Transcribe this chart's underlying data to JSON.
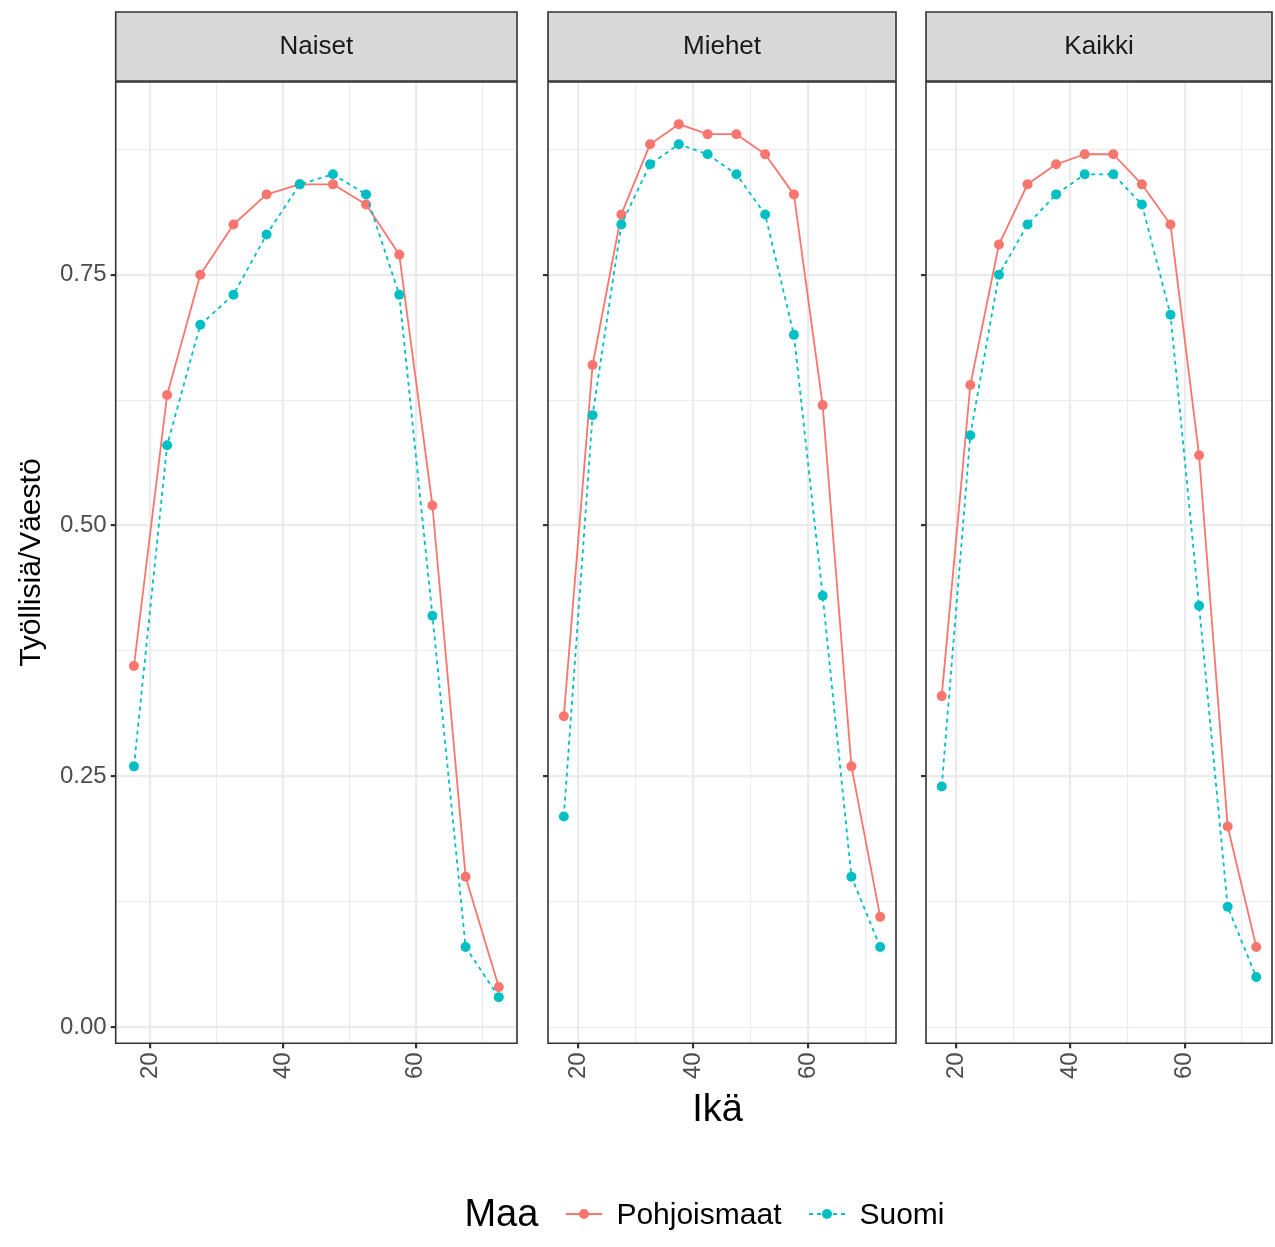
{
  "chart_data": [
    {
      "type": "line",
      "title": "Naiset",
      "ylabel": "Työllisiä/Väestö",
      "x": [
        17.5,
        22.5,
        27.5,
        32.5,
        37.5,
        42.5,
        47.5,
        52.5,
        57.5,
        62.5,
        67.5,
        72.5
      ],
      "xlim": [
        14.75,
        75.25
      ],
      "ylim": [
        -0.016,
        0.942
      ],
      "xticks": [
        {
          "value": 20,
          "label": "20"
        },
        {
          "value": 30,
          "label": null
        },
        {
          "value": 40,
          "label": "40"
        },
        {
          "value": 50,
          "label": null
        },
        {
          "value": 60,
          "label": "60"
        },
        {
          "value": 70,
          "label": null
        }
      ],
      "yticks": [
        {
          "value": 0,
          "label": "0.00"
        },
        {
          "value": 0.125,
          "label": null
        },
        {
          "value": 0.25,
          "label": "0.25"
        },
        {
          "value": 0.375,
          "label": null
        },
        {
          "value": 0.5,
          "label": "0.50"
        },
        {
          "value": 0.625,
          "label": null
        },
        {
          "value": 0.75,
          "label": "0.75"
        },
        {
          "value": 0.875,
          "label": null
        }
      ],
      "grid": true,
      "marker": "circle",
      "series": [
        {
          "color": "#f8766d",
          "line_style": "solid",
          "values": [
            0.36,
            0.63,
            0.75,
            0.8,
            0.83,
            0.84,
            0.84,
            0.82,
            0.77,
            0.52,
            0.15,
            0.04
          ]
        },
        {
          "color": "#00bfc4",
          "line_style": "dashed",
          "values": [
            0.26,
            0.58,
            0.7,
            0.73,
            0.79,
            0.84,
            0.85,
            0.83,
            0.73,
            0.41,
            0.08,
            0.03
          ]
        }
      ]
    },
    {
      "type": "line",
      "title": "Miehet",
      "xlabel": "Ikä",
      "x": [
        17.5,
        22.5,
        27.5,
        32.5,
        37.5,
        42.5,
        47.5,
        52.5,
        57.5,
        62.5,
        67.5,
        72.5
      ],
      "xlim": [
        14.75,
        75.25
      ],
      "ylim": [
        -0.016,
        0.942
      ],
      "xticks": [
        {
          "value": 20,
          "label": "20"
        },
        {
          "value": 30,
          "label": null
        },
        {
          "value": 40,
          "label": "40"
        },
        {
          "value": 50,
          "label": null
        },
        {
          "value": 60,
          "label": "60"
        },
        {
          "value": 70,
          "label": null
        }
      ],
      "yticks": [
        0,
        {
          "value": 0.125,
          "label": null
        },
        0.25,
        {
          "value": 0.375,
          "label": null
        },
        0.5,
        {
          "value": 0.625,
          "label": null
        },
        0.75,
        {
          "value": 0.875,
          "label": null
        }
      ],
      "grid": true,
      "marker": "circle",
      "tick_labels": "x",
      "legend": "bottom",
      "legend_title": "Maa",
      "series": [
        {
          "name": "Pohjoismaat",
          "color": "#f8766d",
          "line_style": "solid",
          "values": [
            0.31,
            0.66,
            0.81,
            0.88,
            0.9,
            0.89,
            0.89,
            0.87,
            0.83,
            0.62,
            0.26,
            0.11
          ]
        },
        {
          "name": "Suomi",
          "color": "#00bfc4",
          "line_style": "dashed",
          "values": [
            0.21,
            0.61,
            0.8,
            0.86,
            0.88,
            0.87,
            0.85,
            0.81,
            0.69,
            0.43,
            0.15,
            0.08
          ]
        }
      ]
    },
    {
      "type": "line",
      "title": "Kaikki",
      "x": [
        17.5,
        22.5,
        27.5,
        32.5,
        37.5,
        42.5,
        47.5,
        52.5,
        57.5,
        62.5,
        67.5,
        72.5
      ],
      "xlim": [
        14.75,
        75.25
      ],
      "ylim": [
        -0.016,
        0.942
      ],
      "xticks": [
        {
          "value": 20,
          "label": "20"
        },
        {
          "value": 30,
          "label": null
        },
        {
          "value": 40,
          "label": "40"
        },
        {
          "value": 50,
          "label": null
        },
        {
          "value": 60,
          "label": "60"
        },
        {
          "value": 70,
          "label": null
        }
      ],
      "yticks": [
        0,
        {
          "value": 0.125,
          "label": null
        },
        0.25,
        {
          "value": 0.375,
          "label": null
        },
        0.5,
        {
          "value": 0.625,
          "label": null
        },
        0.75,
        {
          "value": 0.875,
          "label": null
        }
      ],
      "grid": true,
      "marker": "circle",
      "tick_labels": "x",
      "series": [
        {
          "color": "#f8766d",
          "line_style": "solid",
          "values": [
            0.33,
            0.64,
            0.78,
            0.84,
            0.86,
            0.87,
            0.87,
            0.84,
            0.8,
            0.57,
            0.2,
            0.08
          ]
        },
        {
          "color": "#00bfc4",
          "line_style": "dashed",
          "values": [
            0.24,
            0.59,
            0.75,
            0.8,
            0.83,
            0.85,
            0.85,
            0.82,
            0.71,
            0.42,
            0.12,
            0.05
          ]
        }
      ]
    }
  ]
}
